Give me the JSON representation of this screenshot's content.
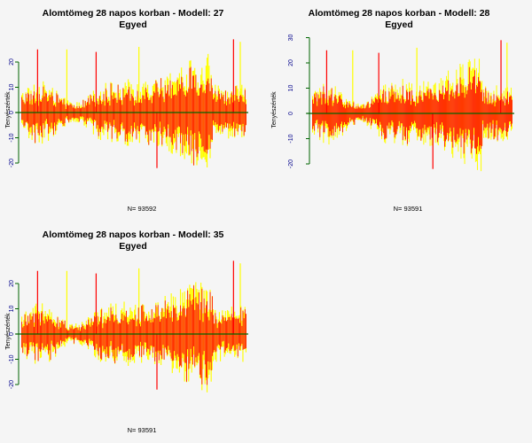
{
  "chart_data": [
    {
      "type": "bar",
      "title": "Alomtömeg 28 napos korban - Modell: 27",
      "subtitle": "Egyed",
      "ylabel": "Tenyészérték",
      "xlabel": "",
      "footer": "N= 93592",
      "ylim": [
        -25,
        30
      ],
      "yticks": [
        -20,
        -10,
        0,
        10,
        20
      ],
      "reference_line": 0,
      "series_colors": [
        "#ffff00",
        "#ff0000"
      ],
      "axis_color": "#006400",
      "x_count": 220,
      "y_range_summary": {
        "min": -23,
        "max": 29
      }
    },
    {
      "type": "bar",
      "title": "Alomtömeg 28 napos korban - Modell: 28",
      "subtitle": "Egyed",
      "ylabel": "Tenyészérték",
      "xlabel": "",
      "footer": "N= 93591",
      "ylim": [
        -25,
        32
      ],
      "yticks": [
        -20,
        -10,
        0,
        10,
        20,
        30
      ],
      "reference_line": 0,
      "series_colors": [
        "#ffff00",
        "#ff0000"
      ],
      "axis_color": "#006400",
      "x_count": 220,
      "y_range_summary": {
        "min": -23,
        "max": 29
      }
    },
    {
      "type": "bar",
      "title": "Alomtömeg 28 napos korban - Modell: 35",
      "subtitle": "Egyed",
      "ylabel": "Tenyészérték",
      "xlabel": "",
      "footer": "N= 93591",
      "ylim": [
        -25,
        30
      ],
      "yticks": [
        -20,
        -10,
        0,
        10,
        20
      ],
      "reference_line": 0,
      "series_colors": [
        "#ffff00",
        "#ff0000"
      ],
      "axis_color": "#006400",
      "x_count": 220,
      "y_range_summary": {
        "min": -23,
        "max": 29
      }
    }
  ]
}
